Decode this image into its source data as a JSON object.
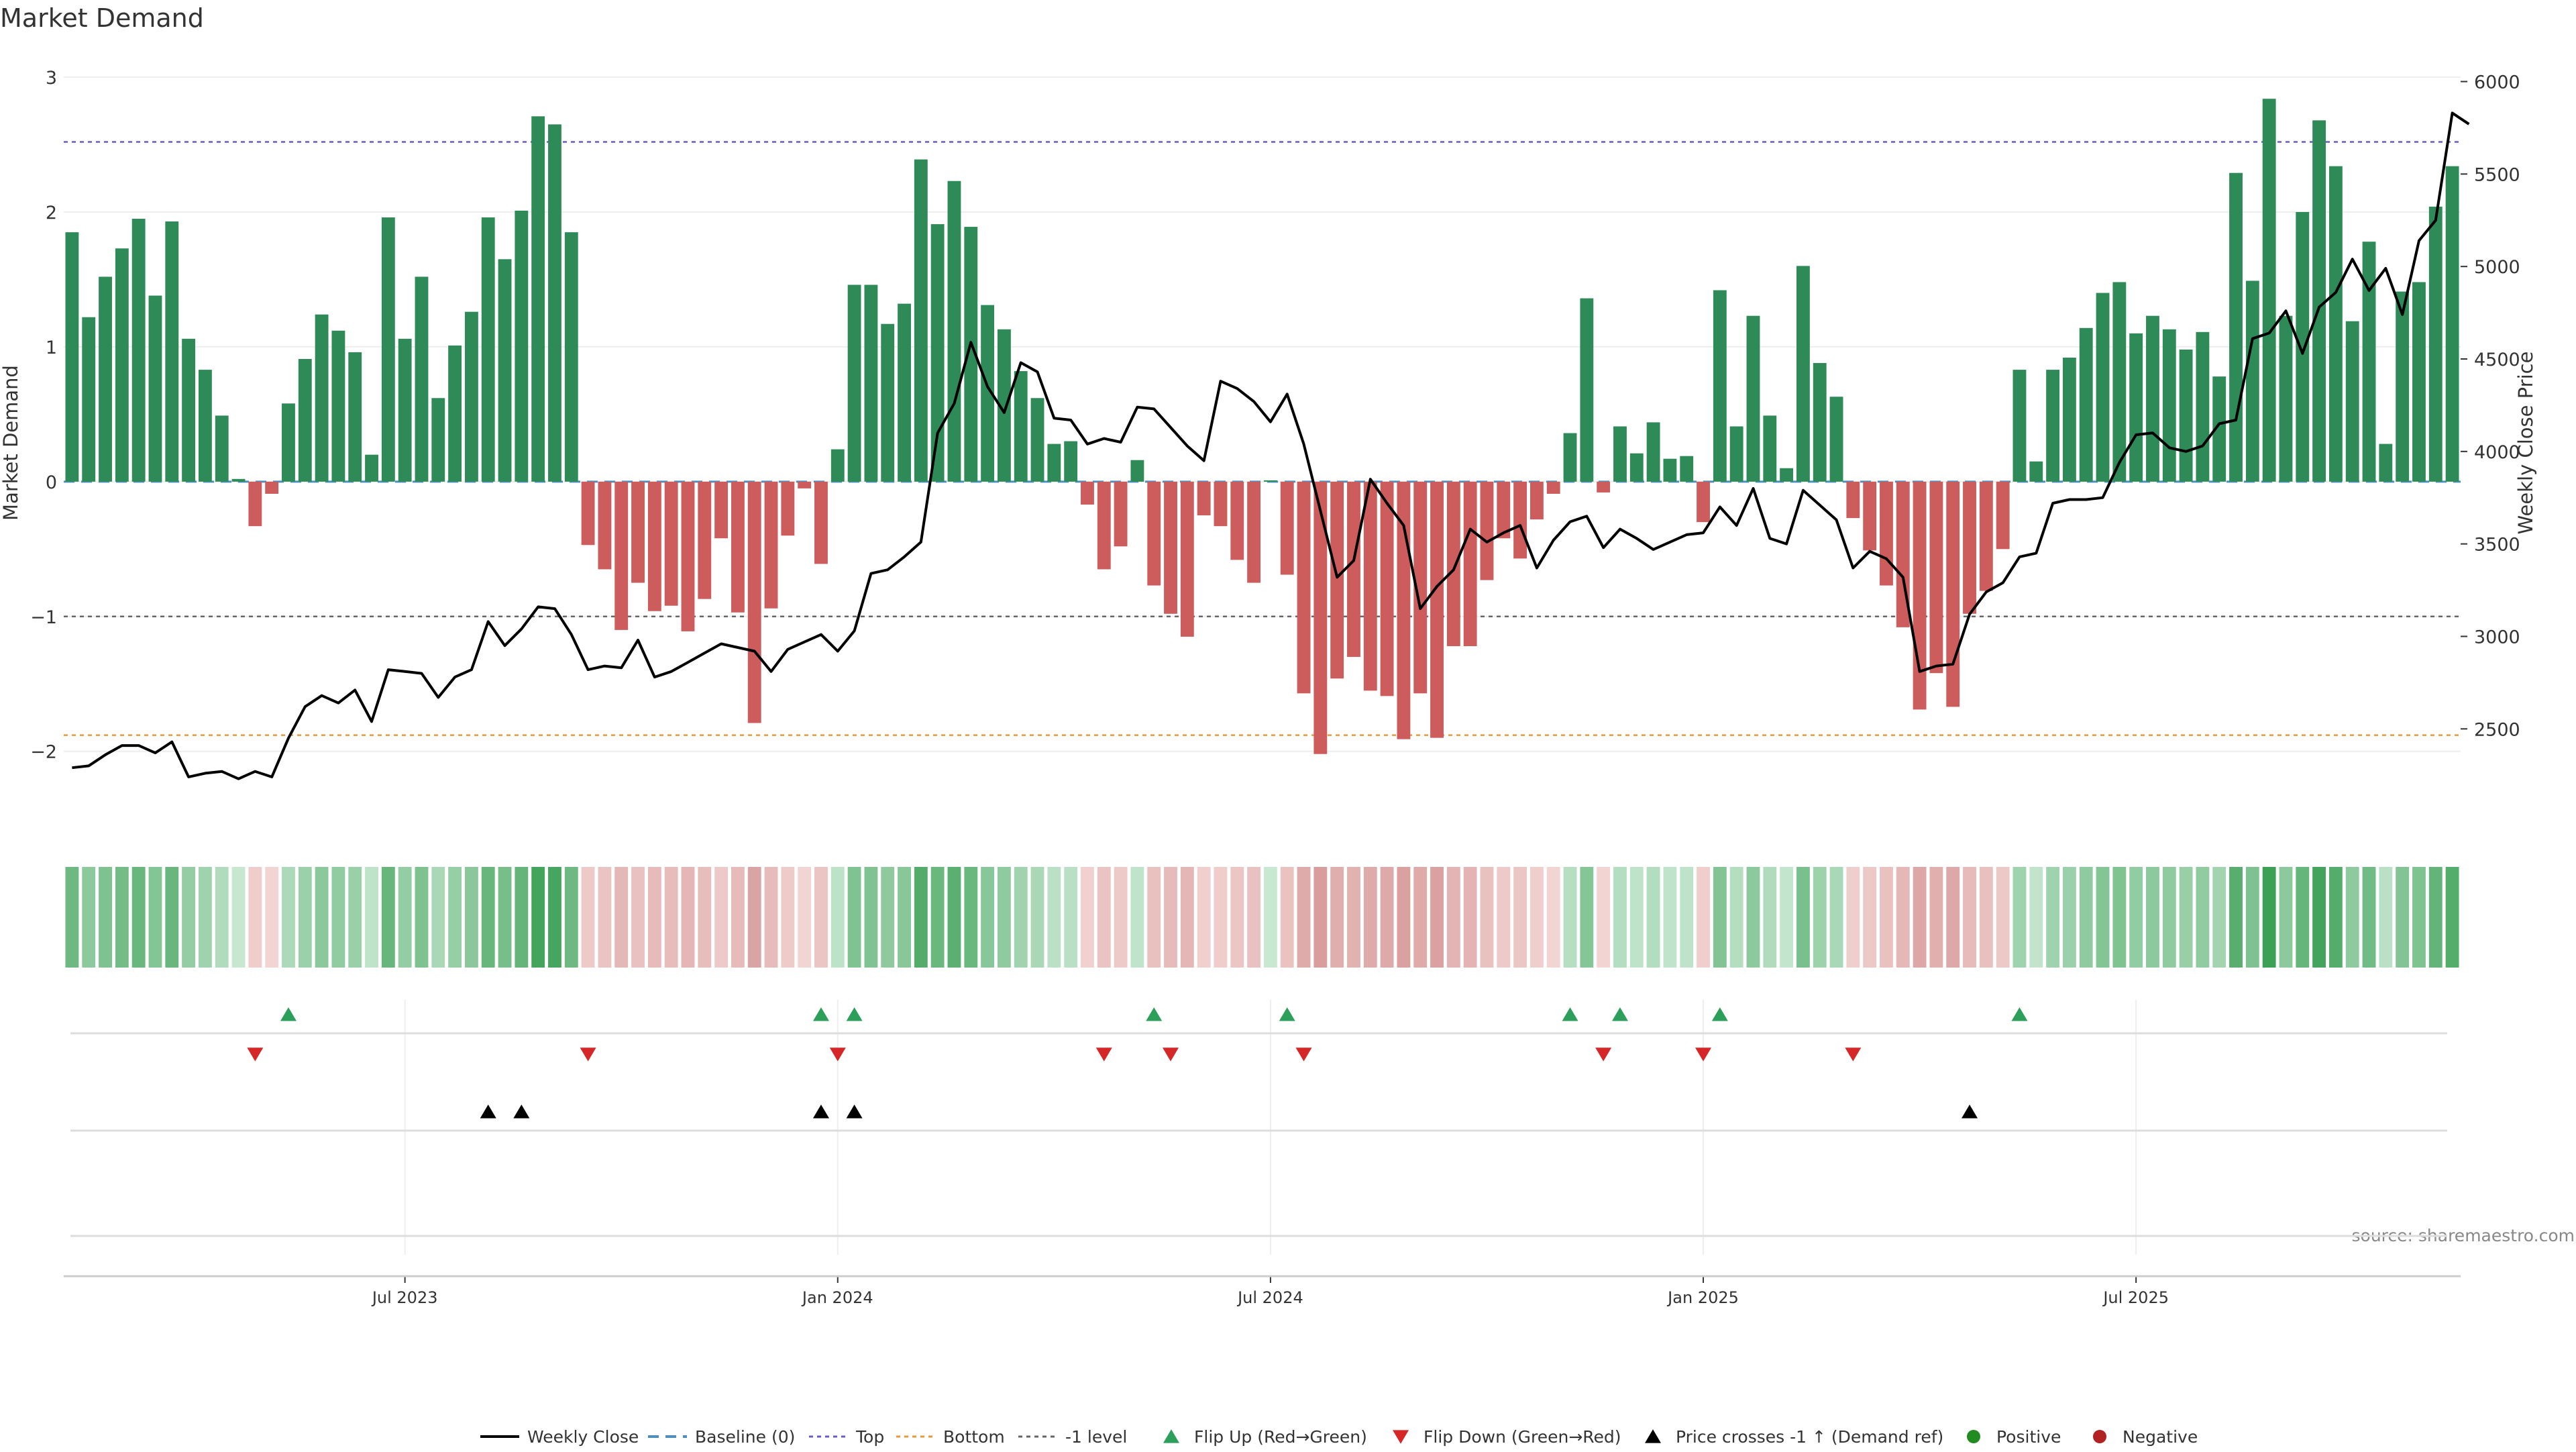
{
  "chart_data": {
    "type": "bar",
    "title": "Market Demand",
    "ylabel": "Market Demand",
    "y2label": "Weekly Close Price",
    "ylim": [
      -2.3,
      3.05
    ],
    "y2lim": [
      2160,
      6060
    ],
    "yticks": [
      3,
      2,
      1,
      0,
      -1,
      -2
    ],
    "ytick_labels": [
      "3",
      "2",
      "1",
      "0",
      "−1",
      "−2"
    ],
    "y2ticks": [
      6000,
      5500,
      5000,
      4500,
      4000,
      3500,
      3000,
      2500
    ],
    "xtick_labels": [
      "Jul 2023",
      "Jan 2024",
      "Jul 2024",
      "Jan 2025",
      "Jul 2025"
    ],
    "xtick_index": [
      20,
      46,
      72,
      98,
      124
    ],
    "levels": {
      "top": 2.52,
      "bottom": -1.88,
      "minus_one": -1.0,
      "baseline": 0
    },
    "demand": [
      1.85,
      1.22,
      1.52,
      1.73,
      1.95,
      1.38,
      1.93,
      1.06,
      0.83,
      0.49,
      0.02,
      -0.33,
      -0.09,
      0.58,
      0.91,
      1.24,
      1.12,
      0.96,
      0.2,
      1.96,
      1.06,
      1.52,
      0.62,
      1.01,
      1.26,
      1.96,
      1.65,
      2.01,
      2.71,
      2.65,
      1.85,
      -0.47,
      -0.65,
      -1.1,
      -0.75,
      -0.96,
      -0.92,
      -1.11,
      -0.87,
      -0.42,
      -0.97,
      -1.79,
      -0.94,
      -0.4,
      -0.05,
      -0.61,
      0.24,
      1.46,
      1.46,
      1.17,
      1.32,
      2.39,
      1.91,
      2.23,
      1.89,
      1.31,
      1.13,
      0.82,
      0.62,
      0.28,
      0.3,
      -0.17,
      -0.65,
      -0.48,
      0.16,
      -0.77,
      -0.98,
      -1.15,
      -0.25,
      -0.33,
      -0.58,
      -0.75,
      0.01,
      -0.69,
      -1.57,
      -2.02,
      -1.46,
      -1.3,
      -1.55,
      -1.59,
      -1.91,
      -1.57,
      -1.9,
      -1.22,
      -1.22,
      -0.73,
      -0.42,
      -0.57,
      -0.28,
      -0.09,
      0.36,
      1.36,
      -0.08,
      0.41,
      0.21,
      0.44,
      0.17,
      0.19,
      -0.3,
      1.42,
      0.41,
      1.23,
      0.49,
      0.1,
      1.6,
      0.88,
      0.63,
      -0.27,
      -0.51,
      -0.77,
      -1.08,
      -1.69,
      -1.42,
      -1.67,
      -0.98,
      -0.81,
      -0.5,
      0.83,
      0.15,
      0.83,
      0.92,
      1.14,
      1.4,
      1.48,
      1.1,
      1.23,
      1.13,
      0.98,
      1.11,
      0.78,
      2.29,
      1.49,
      2.84,
      1.23,
      2.0,
      2.68,
      2.34,
      1.19,
      1.78,
      0.28,
      1.41,
      1.48,
      2.04,
      2.34
    ],
    "price": [
      2290,
      2300,
      2360,
      2410,
      2410,
      2370,
      2430,
      2240,
      2260,
      2270,
      2230,
      2270,
      2240,
      2450,
      2620,
      2680,
      2640,
      2710,
      2540,
      2820,
      2810,
      2800,
      2670,
      2780,
      2820,
      3080,
      2950,
      3040,
      3160,
      3150,
      3010,
      2820,
      2840,
      2830,
      2980,
      2780,
      2810,
      2860,
      2910,
      2960,
      2940,
      2920,
      2810,
      2930,
      2970,
      3010,
      2920,
      3030,
      3340,
      3360,
      3430,
      3510,
      4100,
      4260,
      4590,
      4350,
      4210,
      4480,
      4430,
      4180,
      4170,
      4040,
      4070,
      4050,
      4240,
      4230,
      4130,
      4030,
      3950,
      4380,
      4340,
      4270,
      4160,
      4310,
      4040,
      3680,
      3320,
      3410,
      3850,
      3720,
      3600,
      3150,
      3270,
      3360,
      3580,
      3510,
      3560,
      3600,
      3370,
      3520,
      3620,
      3650,
      3480,
      3580,
      3530,
      3470,
      3510,
      3550,
      3560,
      3700,
      3600,
      3800,
      3530,
      3500,
      3790,
      3710,
      3630,
      3370,
      3460,
      3420,
      3320,
      2810,
      2840,
      2850,
      3120,
      3240,
      3290,
      3430,
      3450,
      3720,
      3740,
      3740,
      3750,
      3940,
      4090,
      4100,
      4020,
      4000,
      4030,
      4150,
      4170,
      4610,
      4640,
      4760,
      4530,
      4780,
      4860,
      5040,
      4870,
      4990,
      4740,
      5140,
      5250,
      5830,
      5770
    ],
    "flip_up_index": [
      13,
      45,
      47,
      65,
      73,
      90,
      93,
      99,
      117
    ],
    "flip_down_index": [
      11,
      31,
      46,
      62,
      66,
      74,
      92,
      98,
      107
    ],
    "price_cross_index": [
      25,
      27,
      45,
      47,
      114
    ],
    "legend": [
      "Weekly Close",
      "Baseline (0)",
      "Top",
      "Bottom",
      "-1 level",
      "Flip Up (Red→Green)",
      "Flip Down (Green→Red)",
      "Price crosses -1 ↑ (Demand ref)",
      "Positive",
      "Negative"
    ],
    "source": "source: sharemaestro.com"
  }
}
